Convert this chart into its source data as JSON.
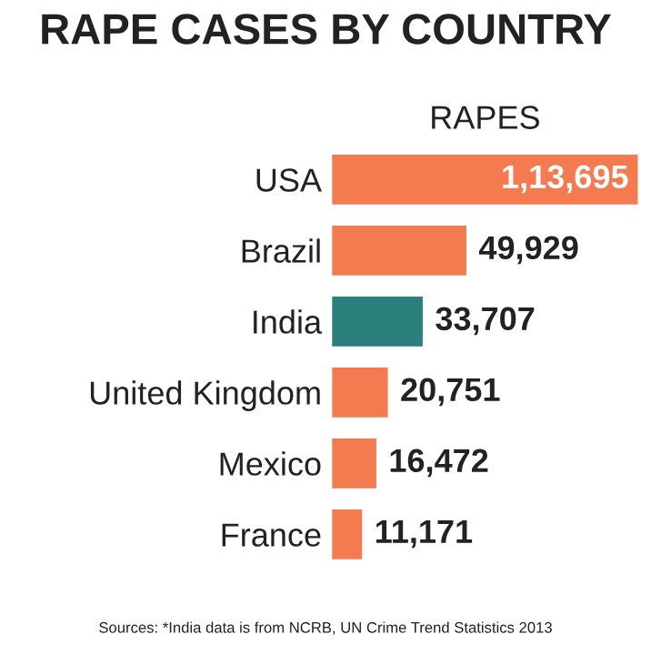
{
  "chart_data": {
    "type": "bar",
    "orientation": "horizontal",
    "title": "RAPE CASES BY COUNTRY",
    "xlabel": "RAPES",
    "categories": [
      "USA",
      "Brazil",
      "India",
      "United Kingdom",
      "Mexico",
      "France"
    ],
    "values": [
      113695,
      49929,
      33707,
      20751,
      16472,
      11171
    ],
    "value_labels": [
      "1,13,695",
      "49,929",
      "33,707",
      "20,751",
      "16,472",
      "11,171"
    ],
    "colors": [
      "#f47b50",
      "#f47b50",
      "#2b7f7c",
      "#f47b50",
      "#f47b50",
      "#f47b50"
    ],
    "annotations": [
      "Sources: *India data is from NCRB, UN Crime Trend Statistics 2013"
    ],
    "grid": false,
    "legend": false
  }
}
